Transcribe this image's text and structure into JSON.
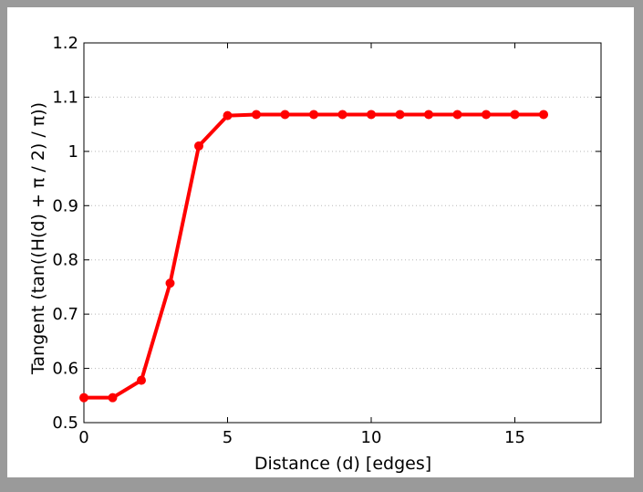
{
  "chart_data": {
    "type": "line",
    "title": "",
    "xlabel": "Distance (d) [edges]",
    "ylabel": "Tangent (tan((H(d) + π / 2) / π))",
    "xlim": [
      0,
      18
    ],
    "ylim": [
      0.5,
      1.2
    ],
    "x_ticks": [
      0,
      5,
      10,
      15
    ],
    "x_tick_labels": [
      "0",
      "5",
      "10",
      "15"
    ],
    "y_ticks": [
      0.5,
      0.6,
      0.7,
      0.8,
      0.9,
      1.0,
      1.1,
      1.2
    ],
    "y_tick_labels": [
      "0.5",
      "0.6",
      "0.7",
      "0.8",
      "0.9",
      "1",
      "1.1",
      "1.2"
    ],
    "grid": "horizontal-dotted",
    "series": [
      {
        "color": "#ff0000",
        "marker": "circle",
        "x": [
          0,
          1,
          2,
          3,
          4,
          5,
          6,
          7,
          8,
          9,
          10,
          11,
          12,
          13,
          14,
          15,
          16
        ],
        "y": [
          0.546,
          0.546,
          0.578,
          0.757,
          1.01,
          1.066,
          1.068,
          1.068,
          1.068,
          1.068,
          1.068,
          1.068,
          1.068,
          1.068,
          1.068,
          1.068,
          1.068
        ]
      }
    ]
  }
}
